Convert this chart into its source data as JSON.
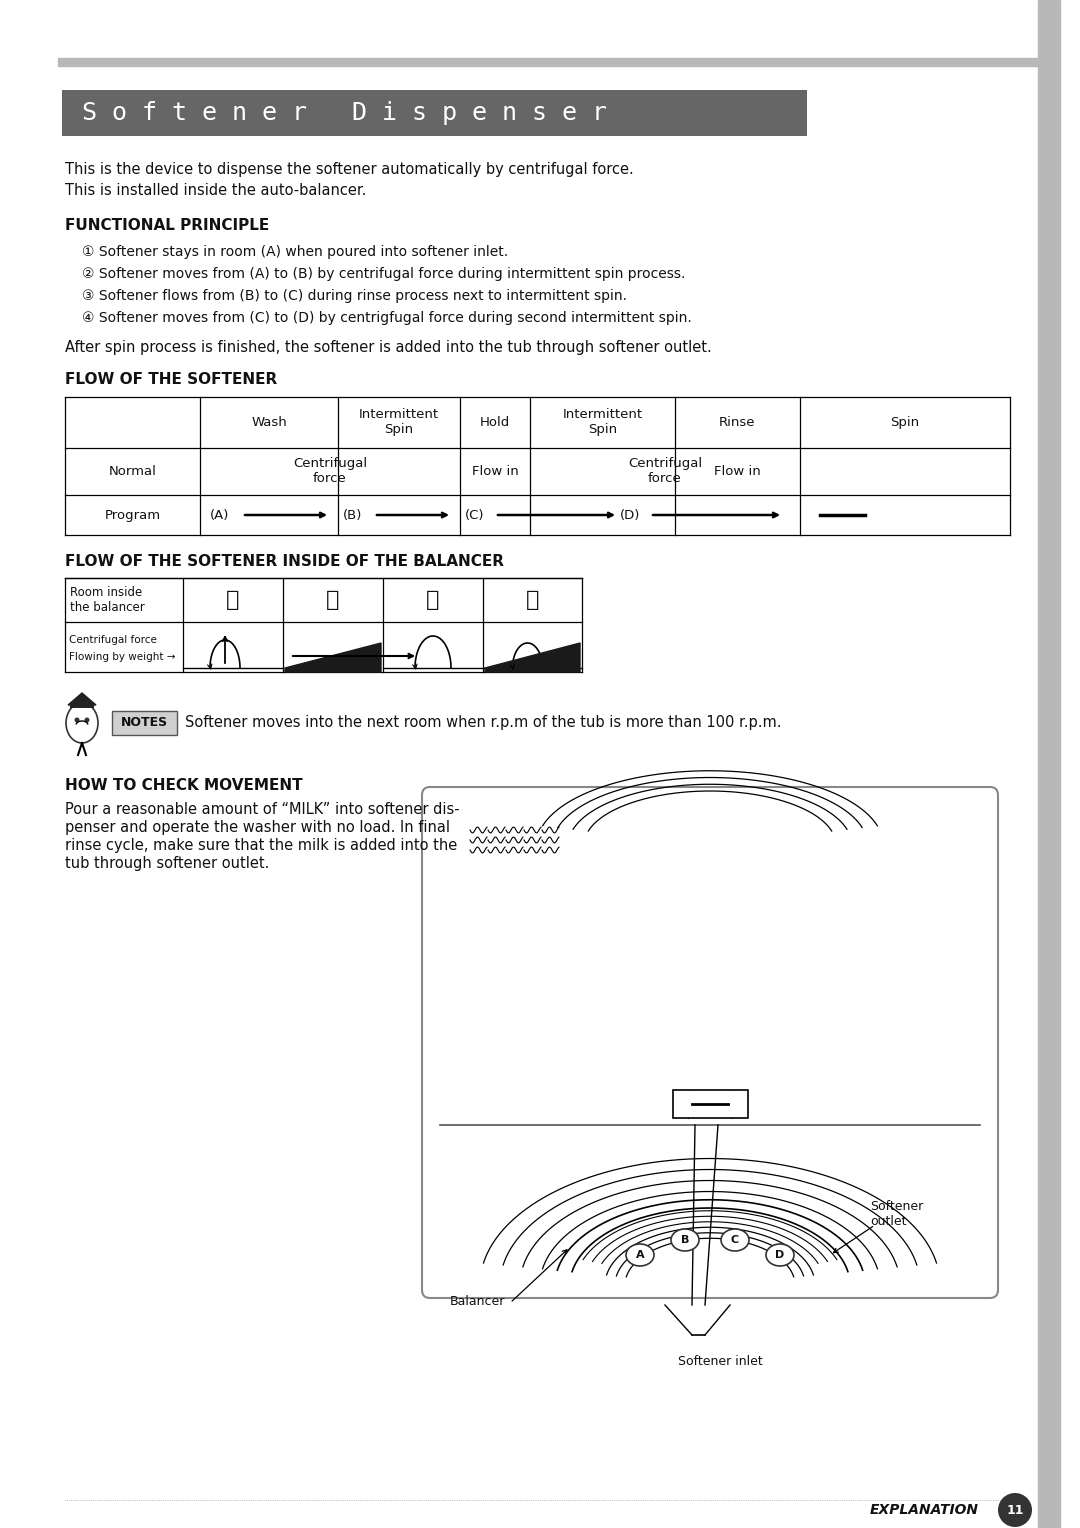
{
  "title": "S o f t e n e r   D i s p e n s e r",
  "title_bg": "#666666",
  "title_text_color": "#ffffff",
  "page_bg": "#ffffff",
  "right_bar_color": "#b8b8b8",
  "top_line_color": "#b8b8b8",
  "intro_line1": "This is the device to dispense the softener automatically by centrifugal force.",
  "intro_line2": "This is installed inside the auto-balancer.",
  "fp_title": "FUNCTIONAL PRINCIPLE",
  "fp1": "① Softener stays in room (A) when poured into softener inlet.",
  "fp2": "② Softener moves from (A) to (B) by centrifugal force during intermittent spin process.",
  "fp3": "③ Softener flows from (B) to (C) during rinse process next to intermittent spin.",
  "fp4": "④ Softener moves from (C) to (D) by centrigfugal force during second intermittent spin.",
  "after_spin": "After spin process is finished, the softener is added into the tub through softener outlet.",
  "flow_title": "FLOW OF THE SOFTENER",
  "balancer_title": "FLOW OF THE SOFTENER INSIDE OF THE BALANCER",
  "notes_text": "Softener moves into the next room when r.p.m of the tub is more than 100 r.p.m.",
  "how_title": "HOW TO CHECK MOVEMENT",
  "how_text1": "Pour a reasonable amount of “MILK” into softener dis-",
  "how_text2": "penser and operate the washer with no load. In final",
  "how_text3": "rinse cycle, make sure that the milk is added into the",
  "how_text4": "tub through softener outlet.",
  "footer_label": "EXPLANATION",
  "footer_num": "11"
}
